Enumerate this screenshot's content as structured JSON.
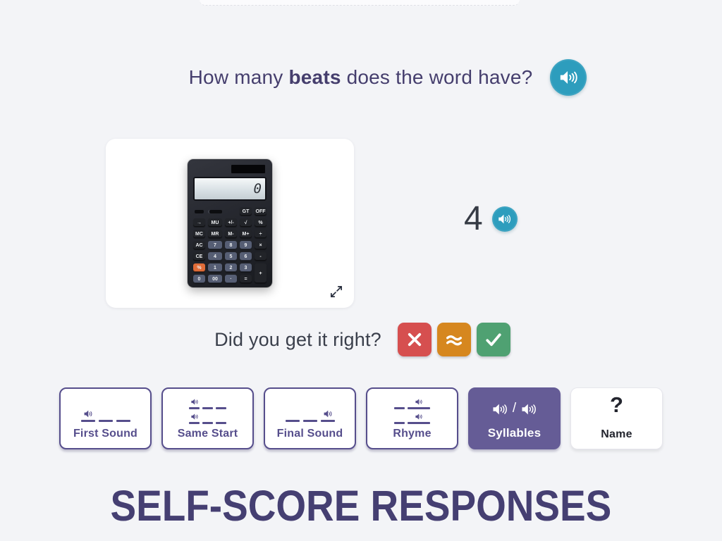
{
  "theme": {
    "background": "#f3f4f7",
    "accent_teal": "#2d9dbd",
    "heading_purple": "#453e6d",
    "tab_purple": "#564e8c",
    "selected_tab_bg": "#655c96",
    "incorrect_red": "#d64f4f",
    "almost_orange": "#d6871f",
    "correct_green": "#4fa172",
    "body_slate": "#3a3f4b"
  },
  "question": {
    "prefix": "How many ",
    "highlight": "beats",
    "suffix": " does the word have?"
  },
  "answer": {
    "value": "4"
  },
  "score": {
    "prompt": "Did you get it right?",
    "buttons": [
      {
        "name": "incorrect",
        "icon": "x"
      },
      {
        "name": "almost",
        "icon": "approx"
      },
      {
        "name": "correct",
        "icon": "check"
      }
    ]
  },
  "calculator": {
    "display": "0",
    "rows": [
      [
        {
          "t": "switch"
        },
        {
          "t": "switch2"
        },
        {
          "t": "spacer"
        },
        {
          "l": "GT"
        },
        {
          "l": "OFF"
        }
      ],
      [
        {
          "l": "→"
        },
        {
          "l": "MU"
        },
        {
          "l": "+/-"
        },
        {
          "l": "√"
        },
        {
          "l": "%"
        }
      ],
      [
        {
          "l": "MC"
        },
        {
          "l": "MR"
        },
        {
          "l": "M-"
        },
        {
          "l": "M+"
        },
        {
          "l": "÷"
        }
      ],
      [
        {
          "l": "AC"
        },
        {
          "l": "7",
          "n": 1
        },
        {
          "l": "8",
          "n": 1
        },
        {
          "l": "9",
          "n": 1
        },
        {
          "l": "×"
        }
      ],
      [
        {
          "l": "CE"
        },
        {
          "l": "4",
          "n": 1
        },
        {
          "l": "5",
          "n": 1
        },
        {
          "l": "6",
          "n": 1
        },
        {
          "l": "-"
        }
      ],
      [
        {
          "l": "%",
          "o": 1
        },
        {
          "l": "1",
          "n": 1
        },
        {
          "l": "2",
          "n": 1
        },
        {
          "l": "3",
          "n": 1
        },
        {
          "l": "+",
          "tall": 1
        }
      ],
      [
        {
          "l": "0",
          "n": 1
        },
        {
          "l": "00",
          "n": 1
        },
        {
          "l": "·",
          "n": 1
        },
        {
          "l": "="
        }
      ]
    ]
  },
  "tabs": [
    {
      "label": "First Sound",
      "selected": false
    },
    {
      "label": "Same Start",
      "selected": false
    },
    {
      "label": "Final Sound",
      "selected": false
    },
    {
      "label": "Rhyme",
      "selected": false
    },
    {
      "label": "Syllables",
      "selected": true,
      "icon_separator": "/"
    },
    {
      "label": "Name",
      "selected": false,
      "icon_glyph": "?"
    }
  ],
  "footer_title": "SELF-SCORE RESPONSES"
}
